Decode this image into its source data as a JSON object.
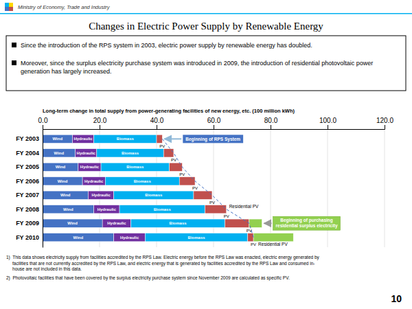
{
  "ministry_text": "Ministry of Economy, Trade and Industry",
  "bullets": [
    "Since the introduction of the RPS system in 2003, electric power supply by renewable energy has doubled.",
    "Moreover, since the surplus electricity purchase system was introduced in 2009, the introduction of residential photovoltaic power generation has largely increased."
  ],
  "footnotes": [
    "1)  This data shows electricity supply from facilities accredited by the RPS Law. Electric energy before the RPS Law was enacted, electric energy generated by\n     facilities that are not currently accredited by the RPS Law, and electric energy that is generated by facilities accredited by the RPS Law and consumed in-\n     house are not included in this data.",
    "2)  Photovoltaic facilities that have been covered by the surplus electricity purchase system since November 2009 are calculated as specific PV."
  ],
  "page_number": "10",
  "chart_data": {
    "type": "bar",
    "orientation": "horizontal",
    "stacked": true,
    "grid": true,
    "title": "Changes in Electric Power Supply by Renewable Energy",
    "subtitle": "Long-term change in total supply from power-generating facilities of new energy, etc. (100 million kWh)",
    "categories": [
      "FY 2003",
      "FY 2004",
      "FY 2005",
      "FY 2006",
      "FY 2007",
      "FY 2008",
      "FY 2009",
      "FY 2010"
    ],
    "series": [
      {
        "name": "Wind",
        "color": "#4472C4",
        "values": [
          10.5,
          11.5,
          12.5,
          14.0,
          16.0,
          18.0,
          21.0,
          25.0
        ]
      },
      {
        "name": "Hydraulic",
        "color": "#7030A0",
        "values": [
          7.5,
          7.5,
          8.0,
          8.0,
          9.0,
          9.0,
          10.0,
          11.0
        ]
      },
      {
        "name": "Biomass",
        "color": "#00B0F0",
        "values": [
          22.0,
          23.5,
          24.0,
          26.0,
          28.0,
          30.0,
          33.0,
          36.0
        ]
      },
      {
        "name": "PV",
        "color": "#C0504D",
        "values": [
          2.0,
          3.5,
          4.5,
          5.5,
          6.5,
          7.5,
          8.5,
          2.0
        ]
      },
      {
        "name": "Residential PV",
        "color": "#92D050",
        "values": [
          0,
          0,
          0,
          0,
          0,
          0,
          4.5,
          14.0
        ]
      }
    ],
    "xlim": [
      0,
      120
    ],
    "xticks": [
      {
        "value": 0,
        "label": "0.0"
      },
      {
        "value": 20,
        "label": "20.0"
      },
      {
        "value": 40,
        "label": "40.0"
      },
      {
        "value": 60,
        "label": "60.0"
      },
      {
        "value": 80,
        "label": "80.0"
      },
      {
        "value": 100,
        "label": "100.0"
      },
      {
        "value": 120,
        "label": "120.0"
      }
    ],
    "annotations": [
      {
        "text": "Beginning of RPS System",
        "category": "FY 2003"
      },
      {
        "text": "Residential PV",
        "category": "FY 2008"
      },
      {
        "text": "Beginning of purchasing\nresidential surplus electricity",
        "category": "FY 2009"
      },
      {
        "text": "Residential PV",
        "category": "FY 2010"
      }
    ]
  }
}
